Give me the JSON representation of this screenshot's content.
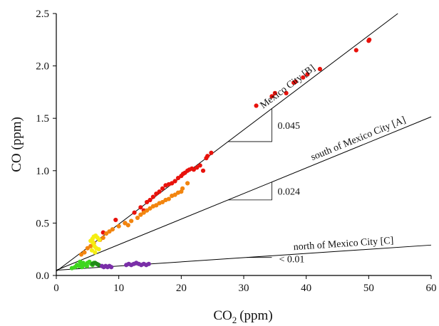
{
  "chart_data": {
    "type": "scatter",
    "xlabel": "CO",
    "xlabel_sub": "2",
    "xlabel_unit": "(ppm)",
    "ylabel": "CO (ppm)",
    "xlim": [
      0,
      60
    ],
    "ylim": [
      0.0,
      2.5
    ],
    "x_ticks": [
      0,
      10,
      20,
      30,
      40,
      50,
      60
    ],
    "y_ticks": [
      0.0,
      0.5,
      1.0,
      1.5,
      2.0,
      2.5
    ],
    "x_tick_labels": [
      "0",
      "10",
      "20",
      "30",
      "40",
      "50",
      "60"
    ],
    "y_tick_labels": [
      "0.0",
      "0.5",
      "1.0",
      "1.5",
      "2.0",
      "2.5"
    ],
    "grid": false,
    "fit_lines": [
      {
        "label": "Mexico City [B]",
        "slope_label": "0.045",
        "slope": 0.045,
        "intercept": 0.04
      },
      {
        "label": "south of Mexico City [A]",
        "slope_label": "0.024",
        "slope": 0.0244,
        "intercept": 0.05
      },
      {
        "label": "north of Mexico City [C]",
        "slope_label": "< 0.01",
        "slope": 0.004,
        "intercept": 0.05
      }
    ],
    "series": [
      {
        "color": "#e8120c",
        "points": [
          [
            7.5,
            0.41
          ],
          [
            9.5,
            0.53
          ],
          [
            11,
            0.5
          ],
          [
            12.5,
            0.6
          ],
          [
            13.5,
            0.65
          ],
          [
            14,
            0.62
          ],
          [
            14.5,
            0.7
          ],
          [
            15,
            0.72
          ],
          [
            15.5,
            0.75
          ],
          [
            16,
            0.78
          ],
          [
            16.5,
            0.8
          ],
          [
            17,
            0.83
          ],
          [
            17.5,
            0.86
          ],
          [
            18,
            0.87
          ],
          [
            18.5,
            0.88
          ],
          [
            19,
            0.9
          ],
          [
            19.5,
            0.93
          ],
          [
            20,
            0.95
          ],
          [
            20.3,
            0.97
          ],
          [
            20.6,
            0.98
          ],
          [
            21,
            1.0
          ],
          [
            21.3,
            1.01
          ],
          [
            21.7,
            1.02
          ],
          [
            22,
            1.01
          ],
          [
            22.5,
            1.03
          ],
          [
            23,
            1.05
          ],
          [
            23.5,
            1.0
          ],
          [
            24,
            1.12
          ],
          [
            24.2,
            1.14
          ],
          [
            24.8,
            1.17
          ],
          [
            32,
            1.62
          ],
          [
            34.5,
            1.71
          ],
          [
            35,
            1.74
          ],
          [
            36.8,
            1.74
          ],
          [
            38,
            1.84
          ],
          [
            38.3,
            1.85
          ],
          [
            39.5,
            1.89
          ],
          [
            40.2,
            1.92
          ],
          [
            42.2,
            1.97
          ],
          [
            48,
            2.15
          ],
          [
            50,
            2.24
          ],
          [
            50.1,
            2.25
          ]
        ]
      },
      {
        "color": "#f2850f",
        "points": [
          [
            4,
            0.2
          ],
          [
            4.5,
            0.22
          ],
          [
            5,
            0.26
          ],
          [
            5.5,
            0.28
          ],
          [
            6,
            0.31
          ],
          [
            7,
            0.34
          ],
          [
            7.5,
            0.36
          ],
          [
            8,
            0.4
          ],
          [
            8.5,
            0.42
          ],
          [
            9,
            0.44
          ],
          [
            10,
            0.47
          ],
          [
            11,
            0.5
          ],
          [
            11.5,
            0.48
          ],
          [
            12,
            0.52
          ],
          [
            13,
            0.55
          ],
          [
            13.5,
            0.58
          ],
          [
            14,
            0.6
          ],
          [
            14.5,
            0.62
          ],
          [
            15,
            0.64
          ],
          [
            15.5,
            0.66
          ],
          [
            16,
            0.67
          ],
          [
            16.5,
            0.69
          ],
          [
            17,
            0.7
          ],
          [
            17.5,
            0.72
          ],
          [
            18,
            0.73
          ],
          [
            18.5,
            0.76
          ],
          [
            19,
            0.77
          ],
          [
            19.5,
            0.79
          ],
          [
            20,
            0.8
          ],
          [
            20.2,
            0.83
          ],
          [
            21,
            0.88
          ]
        ]
      },
      {
        "color": "#f5ee12",
        "points": [
          [
            5.5,
            0.33
          ],
          [
            5.8,
            0.35
          ],
          [
            6,
            0.37
          ],
          [
            6.3,
            0.38
          ],
          [
            6.6,
            0.36
          ],
          [
            6.9,
            0.34
          ],
          [
            5.9,
            0.31
          ],
          [
            6.1,
            0.28
          ],
          [
            6.4,
            0.26
          ],
          [
            5.7,
            0.24
          ],
          [
            6.2,
            0.22
          ],
          [
            6.8,
            0.25
          ]
        ]
      },
      {
        "color": "#3ed61e",
        "points": [
          [
            2.5,
            0.07
          ],
          [
            3,
            0.08
          ],
          [
            3.3,
            0.1
          ],
          [
            3.6,
            0.09
          ],
          [
            4,
            0.11
          ],
          [
            4.3,
            0.12
          ],
          [
            4.6,
            0.1
          ],
          [
            5,
            0.12
          ],
          [
            5.3,
            0.13
          ],
          [
            5.6,
            0.11
          ],
          [
            6,
            0.12
          ],
          [
            3.8,
            0.13
          ],
          [
            4.1,
            0.08
          ],
          [
            4.9,
            0.09
          ],
          [
            5.8,
            0.1
          ]
        ]
      },
      {
        "color": "#1f8a16",
        "points": [
          [
            5.8,
            0.11
          ],
          [
            6.2,
            0.12
          ],
          [
            6.5,
            0.11
          ],
          [
            6.8,
            0.1
          ]
        ]
      },
      {
        "color": "#7a2ea8",
        "points": [
          [
            7.3,
            0.09
          ],
          [
            7.6,
            0.08
          ],
          [
            7.9,
            0.09
          ],
          [
            8.2,
            0.08
          ],
          [
            8.5,
            0.09
          ],
          [
            8.8,
            0.08
          ],
          [
            11.2,
            0.1
          ],
          [
            11.6,
            0.11
          ],
          [
            12,
            0.1
          ],
          [
            12.4,
            0.11
          ],
          [
            12.8,
            0.12
          ],
          [
            13.2,
            0.11
          ],
          [
            13.6,
            0.1
          ],
          [
            14,
            0.11
          ],
          [
            14.4,
            0.1
          ],
          [
            14.8,
            0.11
          ]
        ]
      }
    ]
  }
}
